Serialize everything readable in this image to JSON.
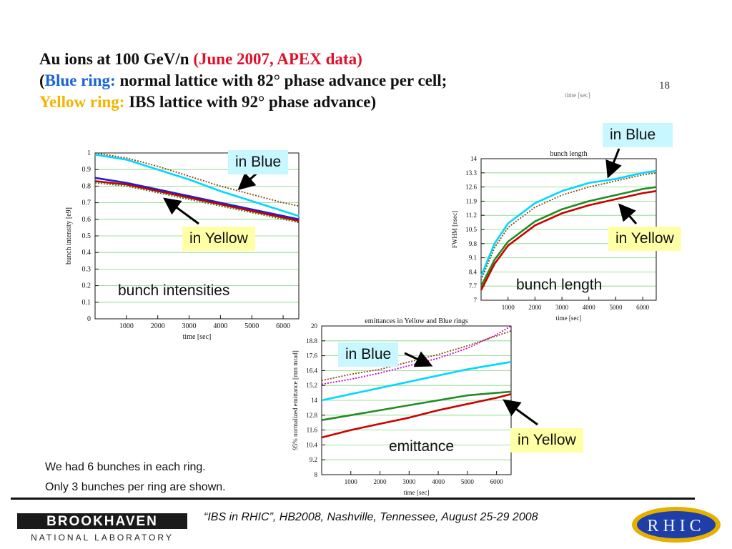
{
  "slide": {
    "title_line1_a": "Au ions at 100 GeV/n ",
    "title_line1_b": "(June 2007, APEX data)",
    "title_line2_open": "(",
    "title_line2_blue": "Blue ring:",
    "title_line2_rest": " normal lattice with 82° phase advance per cell;",
    "title_line3_yellow": "Yellow ring:",
    "title_line3_rest": " IBS lattice with 92° phase advance)",
    "page_number": "18",
    "ghost_label": "time [sec]",
    "note1": "We had 6 bunches in each ring.",
    "note2": "Only 3 bunches per ring are shown.",
    "footer": "“IBS in RHIC”, HB2008, Nashville, Tennessee, August 25-29  2008",
    "logo_left_top": "BROOKHAVEN",
    "logo_left_bottom": "NATIONAL LABORATORY",
    "logo_right": "RHIC",
    "labels": {
      "intensity_blue": "in Blue",
      "intensity_yellow": "in Yellow",
      "intensity_caption": "bunch intensities",
      "length_blue": "in Blue",
      "length_yellow": "in Yellow",
      "length_caption": "bunch length",
      "emit_blue": "in Blue",
      "emit_yellow": "in Yellow",
      "emit_caption": "emittance"
    },
    "colors": {
      "red": "#e0102a",
      "blue": "#1a63d8",
      "yellow": "#f2b400",
      "callout_blue": "#c8f7ff",
      "callout_yellow": "#ffffa6"
    }
  },
  "chart_data": [
    {
      "type": "line",
      "title": "",
      "xlabel": "time [sec]",
      "ylabel": "bunch intensity [e9]",
      "xlim": [
        0,
        6500
      ],
      "ylim": [
        0,
        1
      ],
      "xticks": [
        1000,
        2000,
        3000,
        4000,
        5000,
        6000
      ],
      "yticks": [
        0,
        0.1,
        0.2,
        0.3,
        0.4,
        0.5,
        0.6,
        0.7,
        0.8,
        0.9,
        1
      ],
      "ytick_labels": [
        "0",
        "0.1",
        "0.2",
        "0.3",
        "0.4",
        "0.5",
        "0.6",
        "0.7",
        "0.8",
        "0.9",
        "1"
      ],
      "grid": true,
      "series": [
        {
          "color": "#8b4513",
          "dashed": true,
          "x": [
            0,
            1000,
            2000,
            3000,
            4000,
            5000,
            6000,
            6500
          ],
          "y": [
            1.0,
            0.97,
            0.92,
            0.86,
            0.8,
            0.75,
            0.7,
            0.68
          ]
        },
        {
          "color": "#00d8ff",
          "x": [
            0,
            1000,
            2000,
            3000,
            4000,
            5000,
            6000,
            6500
          ],
          "y": [
            0.99,
            0.96,
            0.9,
            0.84,
            0.77,
            0.71,
            0.65,
            0.62
          ]
        },
        {
          "color": "#1e1ecc",
          "x": [
            0,
            1000,
            2000,
            3000,
            4000,
            5000,
            6000,
            6500
          ],
          "y": [
            0.85,
            0.82,
            0.78,
            0.74,
            0.7,
            0.66,
            0.62,
            0.6
          ]
        },
        {
          "color": "#cc0000",
          "x": [
            0,
            1000,
            2000,
            3000,
            4000,
            5000,
            6000,
            6500
          ],
          "y": [
            0.83,
            0.81,
            0.77,
            0.73,
            0.69,
            0.65,
            0.61,
            0.59
          ]
        },
        {
          "color": "#228b22",
          "dashed": true,
          "x": [
            0,
            1000,
            2000,
            3000,
            4000,
            5000,
            6000,
            6500
          ],
          "y": [
            0.82,
            0.8,
            0.76,
            0.72,
            0.68,
            0.64,
            0.6,
            0.58
          ]
        }
      ]
    },
    {
      "type": "line",
      "title": "bunch length",
      "xlabel": "time [sec]",
      "ylabel": "FWHM [nsec]",
      "xlim": [
        0,
        6500
      ],
      "ylim": [
        7,
        14
      ],
      "xticks": [
        1000,
        2000,
        3000,
        4000,
        5000,
        6000
      ],
      "yticks": [
        7,
        7.7,
        8.4,
        9.1,
        9.8,
        10.5,
        11.2,
        11.9,
        12.6,
        13.3,
        14
      ],
      "ytick_labels": [
        "7",
        "7.7",
        "8.4",
        "9.1",
        "9.8",
        "10.5",
        "11.2",
        "11.9",
        "12.6",
        "13.3",
        "14"
      ],
      "grid": true,
      "series": [
        {
          "color": "#00d8ff",
          "x": [
            0,
            500,
            1000,
            2000,
            3000,
            4000,
            5000,
            6000,
            6500
          ],
          "y": [
            8.2,
            9.8,
            10.8,
            11.8,
            12.4,
            12.8,
            13.0,
            13.3,
            13.4
          ]
        },
        {
          "color": "#8b4513",
          "dashed": true,
          "x": [
            0,
            500,
            1000,
            2000,
            3000,
            4000,
            5000,
            6000,
            6500
          ],
          "y": [
            8.0,
            9.6,
            10.6,
            11.6,
            12.2,
            12.6,
            12.9,
            13.2,
            13.3
          ]
        },
        {
          "color": "#228b22",
          "x": [
            0,
            500,
            1000,
            2000,
            3000,
            4000,
            5000,
            6000,
            6500
          ],
          "y": [
            7.7,
            9.0,
            9.9,
            10.9,
            11.5,
            11.9,
            12.2,
            12.5,
            12.6
          ]
        },
        {
          "color": "#cc0000",
          "x": [
            0,
            500,
            1000,
            2000,
            3000,
            4000,
            5000,
            6000,
            6500
          ],
          "y": [
            7.5,
            8.8,
            9.7,
            10.7,
            11.3,
            11.7,
            12.0,
            12.3,
            12.4
          ]
        }
      ]
    },
    {
      "type": "line",
      "title": "emittances in Yellow and Blue rings",
      "xlabel": "time [sec]",
      "ylabel": "95% normalized emittance [mm mrad]",
      "xlim": [
        0,
        6500
      ],
      "ylim": [
        8,
        20
      ],
      "xticks": [
        1000,
        2000,
        3000,
        4000,
        5000,
        6000
      ],
      "yticks": [
        8,
        9.2,
        10.4,
        11.6,
        12.8,
        14,
        15.2,
        16.4,
        17.6,
        18.8,
        20
      ],
      "ytick_labels": [
        "8",
        "9.2",
        "10.4",
        "11.6",
        "12.8",
        "14",
        "15.2",
        "16.4",
        "17.6",
        "18.8",
        "20"
      ],
      "grid": true,
      "series": [
        {
          "color": "#cc00cc",
          "dashed": true,
          "x": [
            0,
            1000,
            2000,
            3000,
            4000,
            5000,
            6000,
            6500
          ],
          "y": [
            15.3,
            15.7,
            16.2,
            16.8,
            17.4,
            18.2,
            19.3,
            20
          ]
        },
        {
          "color": "#8b4513",
          "dashed": true,
          "x": [
            0,
            1000,
            2000,
            3000,
            4000,
            5000,
            6000,
            6500
          ],
          "y": [
            15.6,
            16.1,
            16.5,
            17.1,
            17.7,
            18.4,
            19.2,
            19.6
          ]
        },
        {
          "color": "#00d8ff",
          "x": [
            0,
            1000,
            2000,
            3000,
            4000,
            5000,
            6000,
            6500
          ],
          "y": [
            14.0,
            14.5,
            15.0,
            15.5,
            16.0,
            16.5,
            16.9,
            17.1
          ]
        },
        {
          "color": "#228b22",
          "x": [
            0,
            1000,
            2000,
            3000,
            4000,
            5000,
            6000,
            6500
          ],
          "y": [
            12.4,
            12.8,
            13.2,
            13.6,
            14.0,
            14.4,
            14.6,
            14.7
          ]
        },
        {
          "color": "#cc0000",
          "x": [
            0,
            1000,
            2000,
            3000,
            4000,
            5000,
            6000,
            6500
          ],
          "y": [
            11.0,
            11.6,
            12.1,
            12.6,
            13.2,
            13.7,
            14.2,
            14.5
          ]
        }
      ]
    }
  ]
}
